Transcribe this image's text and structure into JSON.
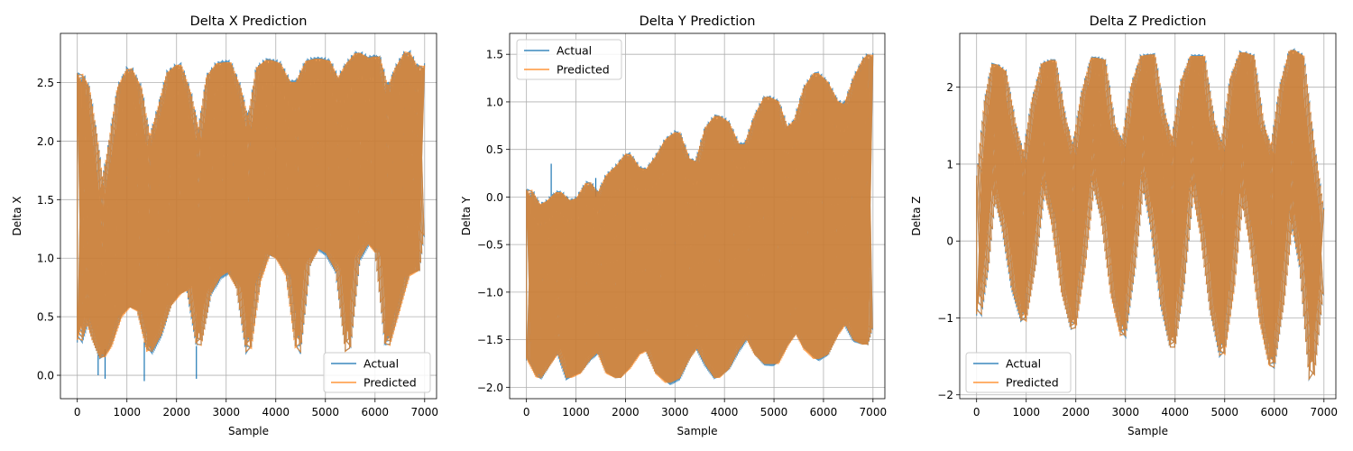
{
  "colors": {
    "actual": "#1f77b4",
    "predicted": "#ff7f0e",
    "grid": "#b0b0b0",
    "frame": "#000000",
    "legend_border": "#cccccc"
  },
  "chart_data": [
    {
      "type": "line",
      "title": "Delta X Prediction",
      "xlabel": "Sample",
      "ylabel": "Delta X",
      "xlim": [
        -340,
        7240
      ],
      "ylim": [
        -0.2,
        2.92
      ],
      "xticks": [
        0,
        1000,
        2000,
        3000,
        4000,
        5000,
        6000,
        7000
      ],
      "xtick_labels": [
        "0",
        "1000",
        "2000",
        "3000",
        "4000",
        "5000",
        "6000",
        "7000"
      ],
      "yticks": [
        0.0,
        0.5,
        1.0,
        1.5,
        2.0,
        2.5
      ],
      "ytick_labels": [
        "0.0",
        "0.5",
        "1.0",
        "1.5",
        "2.0",
        "2.5"
      ],
      "grid": true,
      "legend": {
        "position": "lower-right",
        "entries": [
          "Actual",
          "Predicted"
        ]
      },
      "series": [
        {
          "name": "Actual",
          "color": "#1f77b4"
        },
        {
          "name": "Predicted",
          "color": "#ff7f0e"
        }
      ],
      "envelope": {
        "x": [
          0,
          150,
          300,
          450,
          600,
          800,
          1000,
          1200,
          1400,
          1600,
          1800,
          2000,
          2200,
          2400,
          2600,
          2800,
          3000,
          3200,
          3400,
          3600,
          3800,
          4000,
          4200,
          4400,
          4600,
          4800,
          5000,
          5200,
          5400,
          5600,
          5800,
          6000,
          6200,
          6400,
          6600,
          6800,
          6900
        ],
        "upper": [
          2.58,
          2.45,
          2.05,
          1.55,
          1.9,
          2.45,
          2.62,
          2.45,
          1.95,
          2.25,
          2.58,
          2.65,
          2.4,
          2.0,
          2.55,
          2.66,
          2.67,
          2.45,
          2.1,
          2.62,
          2.69,
          2.66,
          2.5,
          2.5,
          2.68,
          2.7,
          2.68,
          2.5,
          2.65,
          2.75,
          2.7,
          2.72,
          2.4,
          2.62,
          2.76,
          2.6,
          2.65
        ],
        "lower": [
          0.3,
          0.5,
          0.3,
          0.15,
          0.25,
          0.5,
          0.6,
          0.55,
          0.2,
          0.35,
          0.6,
          0.7,
          0.75,
          0.25,
          0.7,
          0.85,
          0.9,
          0.75,
          0.2,
          0.8,
          1.05,
          1.0,
          0.85,
          0.2,
          0.95,
          1.1,
          1.05,
          0.9,
          0.2,
          1.0,
          1.15,
          1.05,
          0.25,
          0.55,
          0.85,
          0.9,
          1.25
        ],
        "actual_spikes_low": [
          [
            420,
            0.0
          ],
          [
            560,
            -0.03
          ],
          [
            1350,
            -0.05
          ],
          [
            2400,
            -0.03
          ]
        ]
      }
    },
    {
      "type": "line",
      "title": "Delta Y Prediction",
      "xlabel": "Sample",
      "ylabel": "Delta Y",
      "xlim": [
        -340,
        7240
      ],
      "ylim": [
        -2.12,
        1.72
      ],
      "xticks": [
        0,
        1000,
        2000,
        3000,
        4000,
        5000,
        6000,
        7000
      ],
      "xtick_labels": [
        "0",
        "1000",
        "2000",
        "3000",
        "4000",
        "5000",
        "6000",
        "7000"
      ],
      "yticks": [
        -2.0,
        -1.5,
        -1.0,
        -0.5,
        0.0,
        0.5,
        1.0,
        1.5
      ],
      "ytick_labels": [
        "−2.0",
        "−1.5",
        "−1.0",
        "−0.5",
        "0.0",
        "0.5",
        "1.0",
        "1.5"
      ],
      "grid": true,
      "legend": {
        "position": "upper-left",
        "entries": [
          "Actual",
          "Predicted"
        ]
      },
      "series": [
        {
          "name": "Actual",
          "color": "#1f77b4"
        },
        {
          "name": "Predicted",
          "color": "#ff7f0e"
        }
      ],
      "envelope": {
        "x": [
          0,
          200,
          400,
          600,
          800,
          1000,
          1200,
          1400,
          1600,
          1800,
          2000,
          2200,
          2400,
          2600,
          2800,
          3000,
          3200,
          3400,
          3600,
          3800,
          4000,
          4200,
          4400,
          4600,
          4800,
          5000,
          5200,
          5400,
          5600,
          5800,
          6000,
          6200,
          6400,
          6600,
          6800,
          6900
        ],
        "upper": [
          0.08,
          -0.1,
          -0.05,
          0.05,
          -0.05,
          -0.02,
          0.15,
          0.0,
          0.22,
          0.32,
          0.45,
          0.3,
          0.28,
          0.42,
          0.6,
          0.68,
          0.4,
          0.35,
          0.72,
          0.85,
          0.78,
          0.55,
          0.55,
          0.85,
          1.05,
          1.0,
          0.7,
          0.8,
          1.15,
          1.3,
          1.2,
          1.0,
          0.95,
          1.25,
          1.45,
          1.5
        ],
        "lower": [
          -1.7,
          -1.9,
          -1.75,
          -1.6,
          -1.9,
          -1.85,
          -1.7,
          -1.6,
          -1.85,
          -1.9,
          -1.8,
          -1.65,
          -1.6,
          -1.85,
          -1.95,
          -1.9,
          -1.7,
          -1.55,
          -1.75,
          -1.9,
          -1.8,
          -1.6,
          -1.45,
          -1.65,
          -1.75,
          -1.75,
          -1.55,
          -1.4,
          -1.6,
          -1.7,
          -1.65,
          -1.45,
          -1.3,
          -1.5,
          -1.55,
          -1.35
        ],
        "actual_spikes_high": [
          [
            500,
            0.35
          ],
          [
            1400,
            0.2
          ]
        ]
      }
    },
    {
      "type": "line",
      "title": "Delta Z Prediction",
      "xlabel": "Sample",
      "ylabel": "Delta Z",
      "xlim": [
        -340,
        7240
      ],
      "ylim": [
        -2.05,
        2.7
      ],
      "xticks": [
        0,
        1000,
        2000,
        3000,
        4000,
        5000,
        6000,
        7000
      ],
      "xtick_labels": [
        "0",
        "1000",
        "2000",
        "3000",
        "4000",
        "5000",
        "6000",
        "7000"
      ],
      "yticks": [
        -2,
        -1,
        0,
        1,
        2
      ],
      "ytick_labels": [
        "−2",
        "−1",
        "0",
        "1",
        "2"
      ],
      "grid": true,
      "legend": {
        "position": "lower-left",
        "entries": [
          "Actual",
          "Predicted"
        ]
      },
      "series": [
        {
          "name": "Actual",
          "color": "#1f77b4"
        },
        {
          "name": "Predicted",
          "color": "#ff7f0e"
        }
      ],
      "envelope": {
        "x": [
          0,
          150,
          300,
          500,
          700,
          900,
          1100,
          1300,
          1500,
          1700,
          1900,
          2100,
          2300,
          2500,
          2700,
          2900,
          3100,
          3300,
          3500,
          3700,
          3900,
          4100,
          4300,
          4500,
          4700,
          4900,
          5100,
          5300,
          5500,
          5700,
          5900,
          6100,
          6300,
          6500,
          6700,
          6900
        ],
        "upper": [
          0.85,
          1.8,
          2.3,
          2.2,
          1.5,
          1.0,
          1.8,
          2.3,
          2.35,
          1.6,
          1.1,
          1.9,
          2.38,
          2.35,
          1.5,
          1.2,
          2.0,
          2.4,
          2.42,
          1.65,
          1.2,
          2.05,
          2.4,
          2.4,
          1.55,
          1.15,
          2.1,
          2.45,
          2.4,
          1.5,
          1.1,
          2.0,
          2.48,
          2.4,
          1.3,
          0.4
        ],
        "lower": [
          -0.95,
          -0.3,
          0.7,
          0.2,
          -0.6,
          -1.05,
          -0.3,
          0.8,
          0.25,
          -0.65,
          -1.15,
          -0.3,
          0.85,
          0.3,
          -0.7,
          -1.25,
          -0.35,
          0.9,
          0.2,
          -0.8,
          -1.4,
          -0.5,
          0.8,
          0.1,
          -0.9,
          -1.5,
          -0.6,
          0.7,
          -0.05,
          -1.05,
          -1.65,
          -0.8,
          0.4,
          -0.3,
          -1.8,
          -0.6
        ]
      }
    }
  ]
}
